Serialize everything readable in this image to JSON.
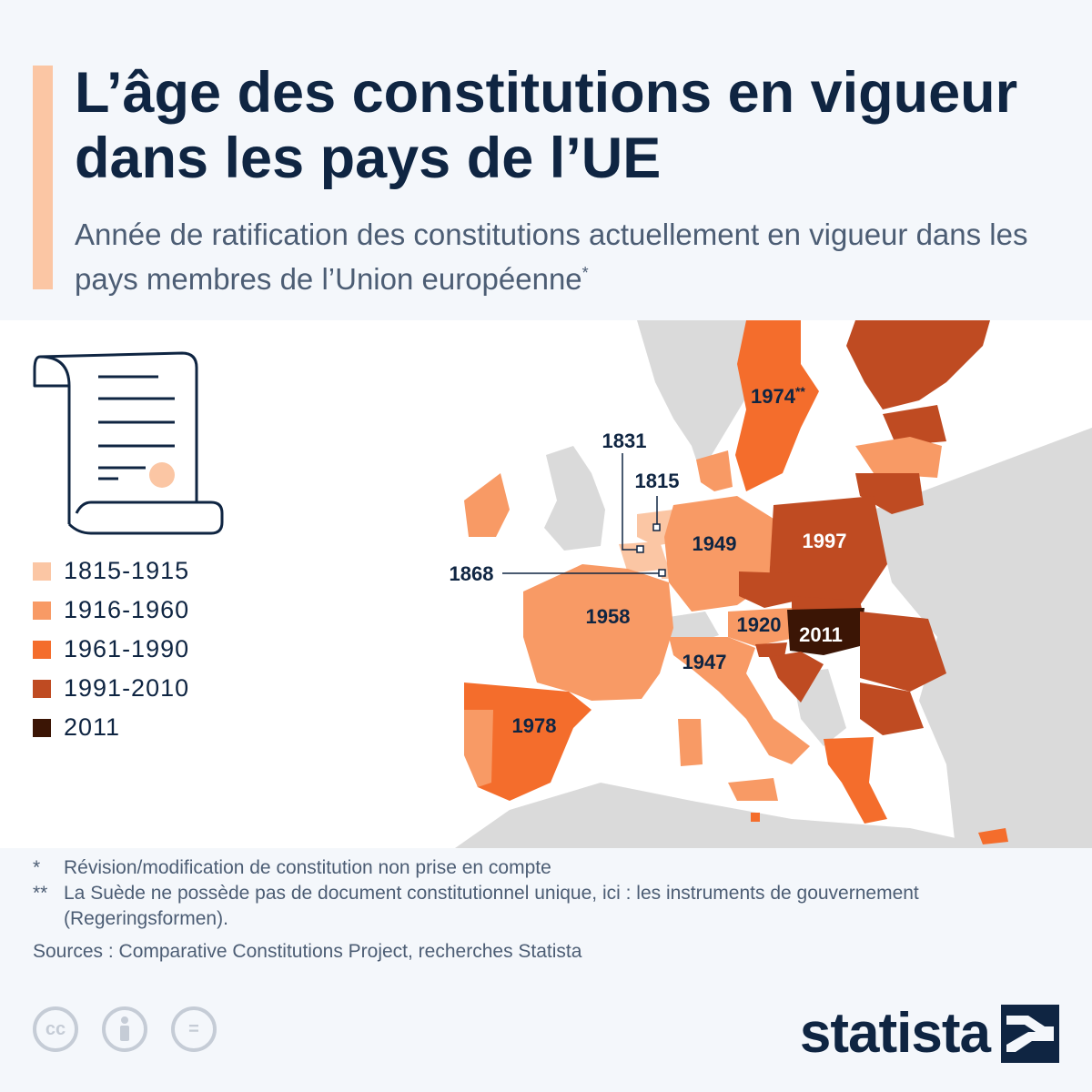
{
  "header": {
    "title": "L’âge des constitutions en vigueur dans les pays de l’UE",
    "subtitle": "Année de ratification des constitutions actuellement en vigueur dans les pays membres de l’Union européenne",
    "subtitle_mark": "*"
  },
  "legend": [
    {
      "label": "1815-1915",
      "color": "#fbc6a4"
    },
    {
      "label": "1916-1960",
      "color": "#f89a65"
    },
    {
      "label": "1961-1990",
      "color": "#f46d2c"
    },
    {
      "label": "1991-2010",
      "color": "#bf4b22"
    },
    {
      "label": "2011",
      "color": "#3b1505"
    }
  ],
  "map_labels": {
    "sweden": "1974",
    "sweden_mark": "**",
    "belgium": "1831",
    "netherlands": "1815",
    "luxembourg": "1868",
    "germany": "1949",
    "poland": "1997",
    "france": "1958",
    "austria": "1920",
    "hungary": "2011",
    "italy": "1947",
    "spain": "1978"
  },
  "notes": [
    {
      "mark": "*",
      "text": "Révision/modification de constitution non prise en compte"
    },
    {
      "mark": "**",
      "text": "La Suède ne possède pas de document constitutionnel unique, ici : les instruments de gouvernement (Regeringsformen)."
    }
  ],
  "sources": "Sources : Comparative Constitutions Project, recherches Statista",
  "license_icons": [
    "cc-icon",
    "attribution-icon",
    "no-derivatives-icon"
  ],
  "license_glyphs": {
    "cc": "cc",
    "nd": "="
  },
  "brand": "statista"
}
